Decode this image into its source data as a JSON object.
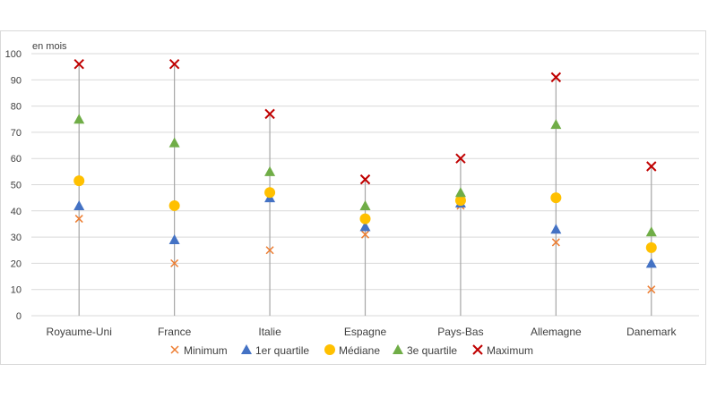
{
  "chart_data": {
    "type": "scatter",
    "unit_label": "en mois",
    "categories": [
      "Royaume-Uni",
      "France",
      "Italie",
      "Espagne",
      "Pays-Bas",
      "Allemagne",
      "Danemark"
    ],
    "ylim": [
      0,
      100
    ],
    "yticks": [
      "0",
      "10",
      "20",
      "30",
      "40",
      "50",
      "60",
      "70",
      "80",
      "90",
      "100"
    ],
    "grid": true,
    "legend_position": "bottom",
    "series": [
      {
        "name": "Minimum",
        "marker": "x",
        "color": "#ed7d31",
        "values": [
          37,
          20,
          25,
          31,
          42,
          28,
          10
        ]
      },
      {
        "name": "1er quartile",
        "marker": "triangle",
        "color": "#4472c4",
        "values": [
          42,
          29,
          45,
          34,
          43,
          33,
          20
        ]
      },
      {
        "name": "Médiane",
        "marker": "circle",
        "color": "#ffc000",
        "values": [
          51.5,
          42,
          47,
          37,
          44,
          45,
          26
        ]
      },
      {
        "name": "3e quartile",
        "marker": "triangle",
        "color": "#70ad47",
        "values": [
          75,
          66,
          55,
          42,
          47,
          73,
          32
        ]
      },
      {
        "name": "Maximum",
        "marker": "x",
        "color": "#c00000",
        "values": [
          96,
          96,
          77,
          52,
          60,
          91,
          57
        ]
      }
    ],
    "range_line_color": "#a6a6a6",
    "gridline_color": "#d9d9d9"
  }
}
